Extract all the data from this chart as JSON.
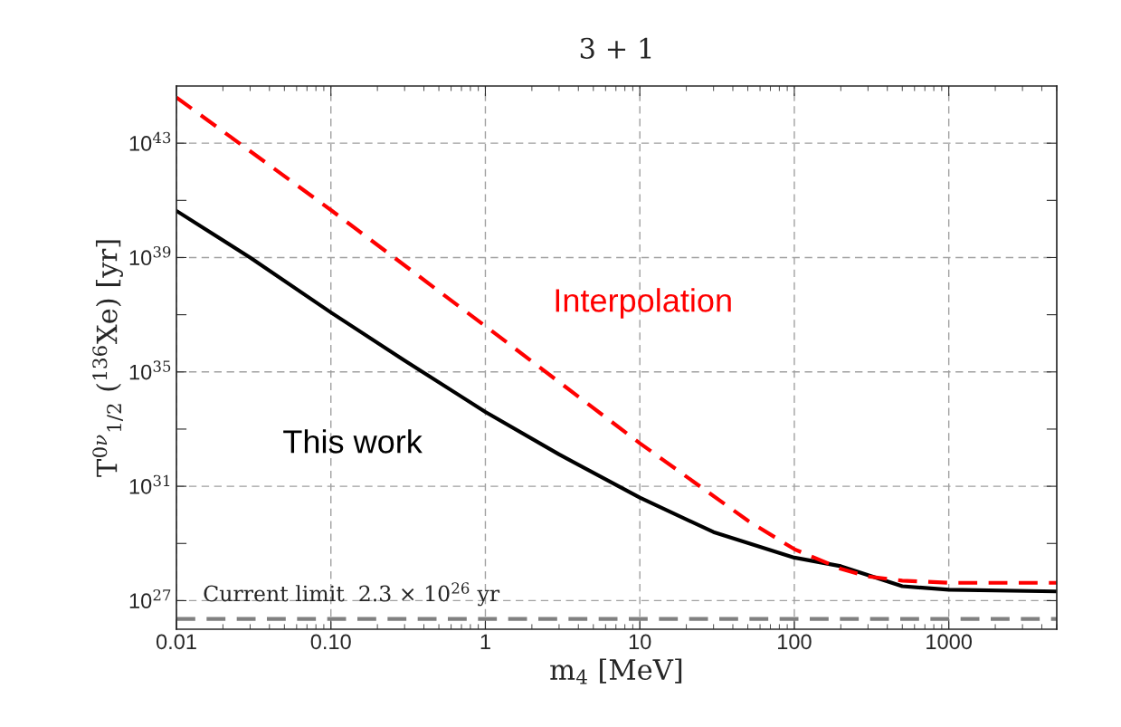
{
  "chart_data": {
    "type": "line",
    "title": "3 + 1",
    "xlabel": "m$_{4}$ [MeV]",
    "ylabel": "T$^{0ν}$$_{1/2}$ ($^{136}$Xe) [yr]",
    "log": "xy",
    "grid": true,
    "xlim": [
      0.01,
      5000
    ],
    "ylim": [
      1e+26,
      1e+45
    ],
    "xticks": [
      0.01,
      {
        "value": 0.1,
        "label": "0.10"
      },
      1,
      10,
      100,
      1000
    ],
    "yticks": [
      {
        "value": 1e+27,
        "label": "10$^{27}$"
      },
      {
        "value": 1e+29,
        "label": null
      },
      {
        "value": 1e+31,
        "label": "10$^{31}$"
      },
      {
        "value": 1e+33,
        "label": null
      },
      {
        "value": 1e+35,
        "label": "10$^{35}$"
      },
      {
        "value": 1e+37,
        "label": null
      },
      {
        "value": 1e+39,
        "label": "10$^{39}$"
      },
      {
        "value": 1e+41,
        "label": null
      },
      {
        "value": 1e+43,
        "label": "10$^{43}$"
      }
    ],
    "series": [
      {
        "name": "This work",
        "color": "#000000",
        "line_style": "solid",
        "x": [
          0.01,
          0.03,
          0.1,
          0.3,
          1,
          3,
          10,
          30,
          100,
          200,
          500,
          1000,
          5000
        ],
        "values": [
          4.3e+40,
          1e+39,
          1.2e+37,
          2.5e+35,
          4e+33,
          1.3e+32,
          4e+30,
          2.5e+29,
          3.2e+28,
          1.6e+28,
          3.2e+27,
          2.4e+27,
          2.1e+27
        ]
      },
      {
        "name": "Interpolation",
        "color": "#ff0000",
        "line_style": "dashed",
        "x": [
          0.01,
          0.1,
          1,
          10,
          50,
          100,
          200,
          300,
          500,
          1000,
          5000
        ],
        "values": [
          4e+44,
          4.6e+40,
          4e+36,
          3.2e+32,
          6.3e+29,
          6.3e+28,
          1.3e+28,
          7e+27,
          5e+27,
          4.2e+27,
          4.2e+27
        ]
      }
    ],
    "ref_lines": [
      {
        "axis": "y",
        "value": 2.3e+26,
        "label": "Current limit  2.3 × 10$^{26}$ yr",
        "color": "#808080",
        "line_style": "dashed"
      }
    ]
  }
}
